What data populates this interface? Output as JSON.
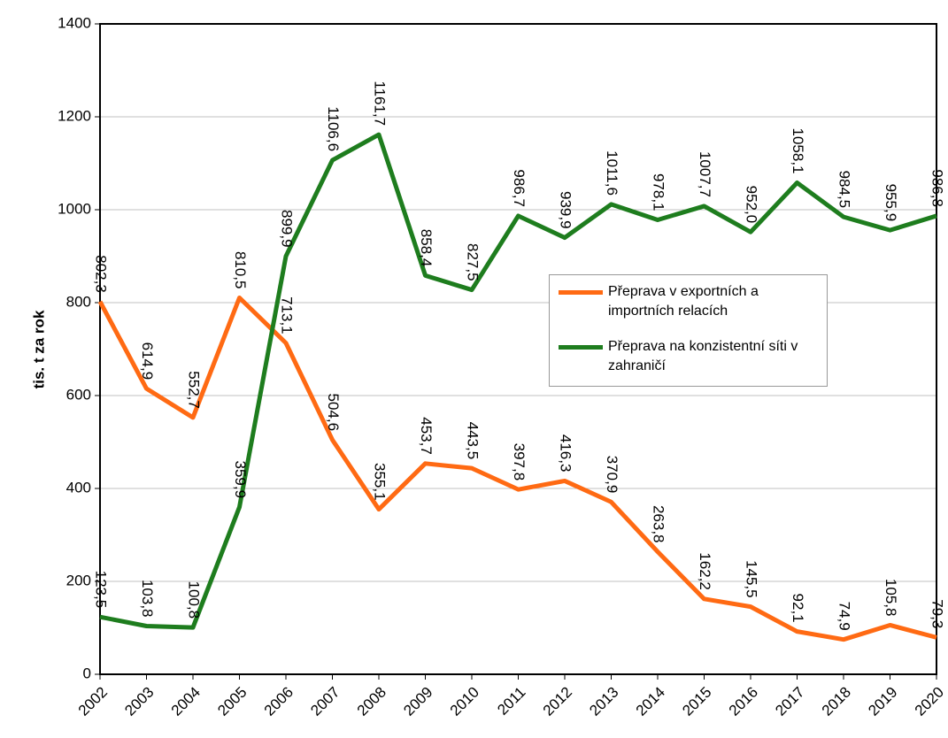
{
  "chart_data": {
    "type": "line",
    "y_label": "tis. t za rok",
    "categories": [
      "2002",
      "2003",
      "2004",
      "2005",
      "2006",
      "2007",
      "2008",
      "2009",
      "2010",
      "2011",
      "2012",
      "2013",
      "2014",
      "2015",
      "2016",
      "2017",
      "2018",
      "2019",
      "2020"
    ],
    "series": [
      {
        "name": "Přeprava v exportních a importních relacích",
        "color": "#ff6a13",
        "values": [
          802.3,
          614.9,
          552.7,
          810.5,
          713.1,
          504.6,
          355.1,
          453.7,
          443.5,
          397.8,
          416.3,
          370.9,
          263.8,
          162.2,
          145.5,
          92.1,
          74.9,
          105.8,
          79.3
        ],
        "value_labels": [
          "802,3",
          "614,9",
          "552,7",
          "810,5",
          "713,1",
          "504,6",
          "355,1",
          "453,7",
          "443,5",
          "397,8",
          "416,3",
          "370,9",
          "263,8",
          "162,2",
          "145,5",
          "92,1",
          "74,9",
          "105,8",
          "79,3"
        ]
      },
      {
        "name": "Přeprava na konzistentní síti v zahraničí",
        "color": "#1e7d1e",
        "values": [
          123.5,
          103.8,
          100.8,
          359.9,
          899.9,
          1106.6,
          1161.7,
          858.4,
          827.5,
          986.7,
          939.9,
          1011.6,
          978.1,
          1007.7,
          952.0,
          1058.1,
          984.5,
          955.9,
          986.8
        ],
        "value_labels": [
          "123,5",
          "103,8",
          "100,8",
          "359,9",
          "899,9",
          "1106,6",
          "1161,7",
          "858,4",
          "827,5",
          "986,7",
          "939,9",
          "1011,6",
          "978,1",
          "1007,7",
          "952,0",
          "1058,1",
          "984,5",
          "955,9",
          "986,8"
        ]
      }
    ],
    "ylim": [
      0,
      1400
    ],
    "yticks": [
      0,
      200,
      400,
      600,
      800,
      1000,
      1200,
      1400
    ],
    "grid": true
  }
}
